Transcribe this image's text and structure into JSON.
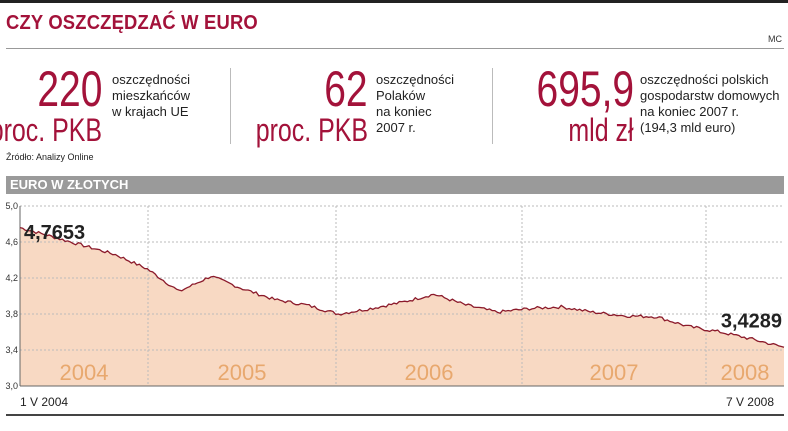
{
  "header": {
    "title": "CZY OSZCZĘDZAĆ W EURO",
    "author": "MC"
  },
  "stats": [
    {
      "number": "220",
      "unit": "proc. PKB",
      "lines": [
        "oszczędności",
        "mieszkańców",
        "w krajach UE"
      ]
    },
    {
      "number": "62",
      "unit": "proc. PKB",
      "lines": [
        "oszczędności",
        "Polaków",
        "na koniec",
        "2007 r."
      ]
    },
    {
      "number": "695,9",
      "unit": "mld zł",
      "lines": [
        "oszczędności polskich",
        "gospodarstw domowych",
        "na koniec 2007 r.",
        "(194,3 mld euro)"
      ]
    }
  ],
  "source": "Źródło: Analizy Online",
  "chart_data": {
    "type": "area",
    "title": "EURO W ZŁOTYCH",
    "xlabel": "",
    "ylabel": "",
    "ylim": [
      3.0,
      5.0
    ],
    "yticks": [
      "5,0",
      "4,6",
      "4,2",
      "3,8",
      "3,4",
      "3,0"
    ],
    "year_labels": [
      "2004",
      "2005",
      "2006",
      "2007",
      "2008"
    ],
    "start_label": "1 V 2004",
    "end_label": "7 V 2008",
    "annotations": [
      {
        "text": "4,7653",
        "x": "2004-05-01",
        "y": 4.7653
      },
      {
        "text": "3,4289",
        "x": "2008-05-07",
        "y": 3.4289
      }
    ],
    "x": [
      "2004-05",
      "2004-07",
      "2004-09",
      "2004-11",
      "2005-01",
      "2005-03",
      "2005-05",
      "2005-07",
      "2005-09",
      "2005-11",
      "2006-01",
      "2006-03",
      "2006-05",
      "2006-07",
      "2006-09",
      "2006-11",
      "2007-01",
      "2007-03",
      "2007-05",
      "2007-07",
      "2007-09",
      "2007-11",
      "2008-01",
      "2008-03",
      "2008-05"
    ],
    "series": [
      {
        "values": [
          4.76,
          4.66,
          4.56,
          4.46,
          4.3,
          4.05,
          4.22,
          4.08,
          3.96,
          3.9,
          3.8,
          3.86,
          3.93,
          4.02,
          3.9,
          3.82,
          3.86,
          3.88,
          3.82,
          3.78,
          3.77,
          3.66,
          3.6,
          3.52,
          3.43
        ]
      }
    ],
    "grid": true
  }
}
